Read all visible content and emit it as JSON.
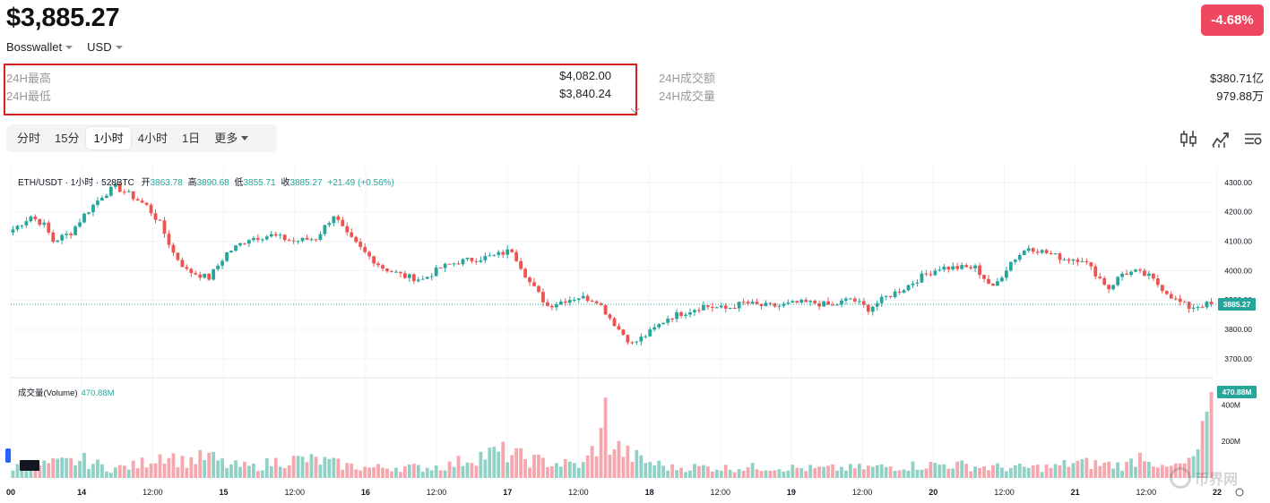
{
  "header": {
    "price": "$3,885.27",
    "wallet": "Bosswallet",
    "currency": "USD",
    "change": "-4.68%"
  },
  "stats": {
    "high_label": "24H最高",
    "high_value": "$4,082.00",
    "low_label": "24H最低",
    "low_value": "$3,840.24",
    "turnover_label": "24H成交额",
    "turnover_value": "$380.71亿",
    "volume_label": "24H成交量",
    "volume_value": "979.88万"
  },
  "tabs": [
    "分时",
    "15分",
    "1小时",
    "4小时",
    "1日",
    "更多"
  ],
  "active_tab": "1小时",
  "toolbar_icons": [
    "candles-icon",
    "indicator-icon",
    "settings-icon"
  ],
  "legend": {
    "symbol": "ETH/USDT · 1小时 · 528BTC",
    "open_label": "开",
    "open": "3863.78",
    "high_label": "高",
    "high": "3890.68",
    "low_label": "低",
    "low": "3855.71",
    "close_label": "收",
    "close": "3885.27",
    "change": "+21.49 (+0.56%)"
  },
  "volume_legend": {
    "label": "成交量(Volume)",
    "value": "470.88M"
  },
  "watermark": "币界网",
  "colors": {
    "up": "#26a69a",
    "down": "#ef5350",
    "up_vol": "#8fd1c5",
    "down_vol": "#f6a7ad",
    "badge": "#f04760",
    "highlight_box": "#d81e1e"
  },
  "chart_data": {
    "type": "candlestick",
    "price_axis": {
      "ticks": [
        "4300.00",
        "4200.00",
        "4100.00",
        "4000.00",
        "3900.00",
        "3800.00",
        "3700.00"
      ],
      "ylim": [
        3660,
        4330
      ],
      "last_price": "3885.27"
    },
    "volume_axis": {
      "ticks": [
        "400M",
        "200M"
      ],
      "last_volume": "470.88M"
    },
    "x_ticks": [
      "00",
      "14",
      "12:00",
      "15",
      "12:00",
      "16",
      "12:00",
      "17",
      "12:00",
      "18",
      "12:00",
      "19",
      "12:00",
      "20",
      "12:00",
      "21",
      "12:00",
      "22"
    ],
    "close_path": [
      [
        0,
        4140
      ],
      [
        4,
        4185
      ],
      [
        7,
        4155
      ],
      [
        9,
        4100
      ],
      [
        13,
        4130
      ],
      [
        16,
        4190
      ],
      [
        20,
        4255
      ],
      [
        23,
        4285
      ],
      [
        26,
        4260
      ],
      [
        30,
        4220
      ],
      [
        33,
        4160
      ],
      [
        36,
        4060
      ],
      [
        39,
        4000
      ],
      [
        44,
        3975
      ],
      [
        48,
        4060
      ],
      [
        53,
        4110
      ],
      [
        58,
        4120
      ],
      [
        63,
        4100
      ],
      [
        68,
        4110
      ],
      [
        72,
        4190
      ],
      [
        75,
        4120
      ],
      [
        79,
        4060
      ],
      [
        83,
        4010
      ],
      [
        88,
        3980
      ],
      [
        92,
        3970
      ],
      [
        96,
        4010
      ],
      [
        100,
        4030
      ],
      [
        104,
        4040
      ],
      [
        108,
        4050
      ],
      [
        112,
        4070
      ],
      [
        116,
        3960
      ],
      [
        120,
        3880
      ],
      [
        124,
        3900
      ],
      [
        127,
        3910
      ],
      [
        131,
        3900
      ],
      [
        136,
        3800
      ],
      [
        139,
        3750
      ],
      [
        143,
        3790
      ],
      [
        147,
        3840
      ],
      [
        151,
        3860
      ],
      [
        155,
        3880
      ],
      [
        160,
        3870
      ],
      [
        164,
        3890
      ],
      [
        168,
        3880
      ],
      [
        172,
        3880
      ],
      [
        176,
        3890
      ],
      [
        180,
        3890
      ],
      [
        184,
        3880
      ],
      [
        188,
        3905
      ],
      [
        192,
        3870
      ],
      [
        196,
        3910
      ],
      [
        200,
        3940
      ],
      [
        204,
        3980
      ],
      [
        208,
        4010
      ],
      [
        212,
        4010
      ],
      [
        216,
        4010
      ],
      [
        220,
        3940
      ],
      [
        224,
        4030
      ],
      [
        228,
        4080
      ],
      [
        232,
        4060
      ],
      [
        236,
        4040
      ],
      [
        240,
        4040
      ],
      [
        243,
        3990
      ],
      [
        246,
        3940
      ],
      [
        249,
        3990
      ],
      [
        252,
        3995
      ],
      [
        255,
        3980
      ],
      [
        258,
        3940
      ],
      [
        261,
        3900
      ],
      [
        264,
        3875
      ],
      [
        268,
        3885
      ]
    ],
    "volume_profile": [
      [
        0,
        60
      ],
      [
        10,
        80
      ],
      [
        16,
        95
      ],
      [
        22,
        50
      ],
      [
        28,
        70
      ],
      [
        34,
        140
      ],
      [
        38,
        90
      ],
      [
        44,
        115
      ],
      [
        48,
        70
      ],
      [
        54,
        60
      ],
      [
        60,
        95
      ],
      [
        66,
        100
      ],
      [
        70,
        90
      ],
      [
        74,
        70
      ],
      [
        80,
        55
      ],
      [
        86,
        60
      ],
      [
        92,
        55
      ],
      [
        98,
        70
      ],
      [
        104,
        120
      ],
      [
        110,
        140
      ],
      [
        116,
        100
      ],
      [
        122,
        80
      ],
      [
        128,
        70
      ],
      [
        132,
        220
      ],
      [
        138,
        130
      ],
      [
        142,
        90
      ],
      [
        148,
        55
      ],
      [
        154,
        60
      ],
      [
        160,
        55
      ],
      [
        170,
        60
      ],
      [
        180,
        50
      ],
      [
        190,
        55
      ],
      [
        200,
        65
      ],
      [
        210,
        75
      ],
      [
        218,
        60
      ],
      [
        226,
        55
      ],
      [
        234,
        60
      ],
      [
        238,
        85
      ],
      [
        244,
        75
      ],
      [
        250,
        70
      ],
      [
        254,
        140
      ],
      [
        258,
        50
      ],
      [
        264,
        80
      ],
      [
        266,
        150
      ],
      [
        268,
        300
      ]
    ]
  }
}
